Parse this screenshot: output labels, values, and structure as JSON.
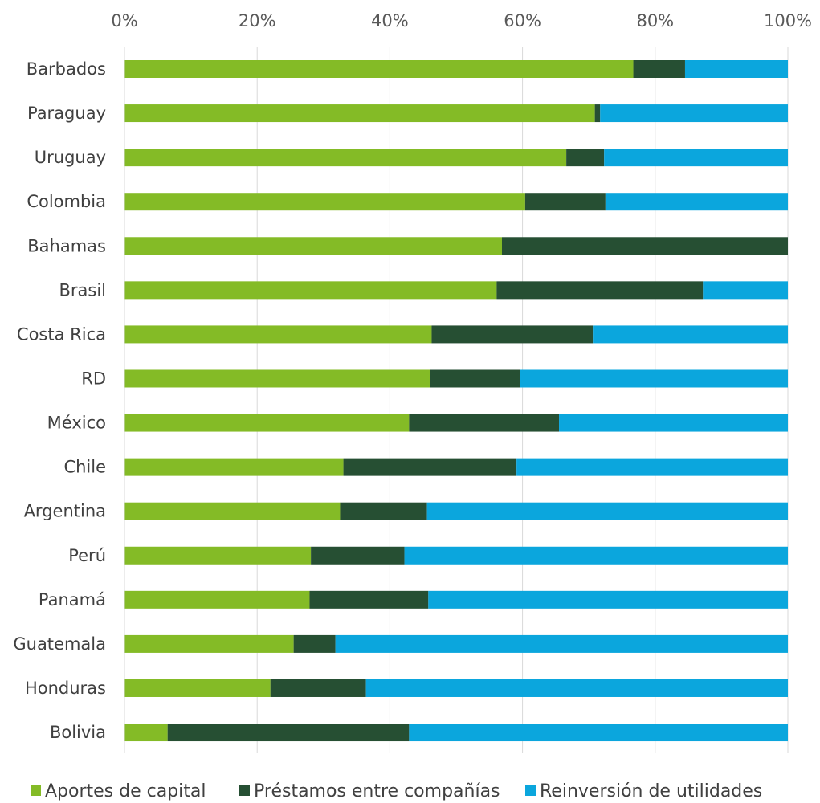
{
  "chart_data": {
    "type": "bar",
    "orientation": "horizontal",
    "stacked": "percent",
    "categories": [
      "Barbados",
      "Paraguay",
      "Uruguay",
      "Colombia",
      "Bahamas",
      "Brasil",
      "Costa Rica",
      "RD",
      "México",
      "Chile",
      "Argentina",
      "Perú",
      "Panamá",
      "Guatemala",
      "Honduras",
      "Bolivia"
    ],
    "series": [
      {
        "name": "Aportes de capital",
        "color": "#84bb26",
        "values": [
          76.7,
          70.9,
          66.6,
          60.4,
          56.9,
          56.1,
          46.3,
          46.1,
          42.9,
          33.0,
          32.5,
          28.1,
          27.9,
          25.5,
          22.0,
          6.5
        ]
      },
      {
        "name": "Préstamos entre compañías",
        "color": "#264f33",
        "values": [
          7.8,
          0.8,
          5.7,
          12.1,
          43.1,
          31.1,
          24.3,
          13.5,
          22.6,
          26.1,
          13.1,
          14.1,
          17.9,
          6.3,
          14.4,
          36.4
        ]
      },
      {
        "name": "Reinversión de utilidades",
        "color": "#0ba6dd",
        "values": [
          15.5,
          28.3,
          27.7,
          27.5,
          0.0,
          12.8,
          29.4,
          40.4,
          34.5,
          40.9,
          54.4,
          57.8,
          54.2,
          68.2,
          63.6,
          57.1
        ]
      }
    ],
    "x_ticks": [
      "0%",
      "20%",
      "40%",
      "60%",
      "80%",
      "100%"
    ],
    "xlim": [
      0,
      100
    ],
    "axis_position": "top",
    "grid": true,
    "legend_position": "bottom",
    "title": "",
    "xlabel": "",
    "ylabel": ""
  }
}
